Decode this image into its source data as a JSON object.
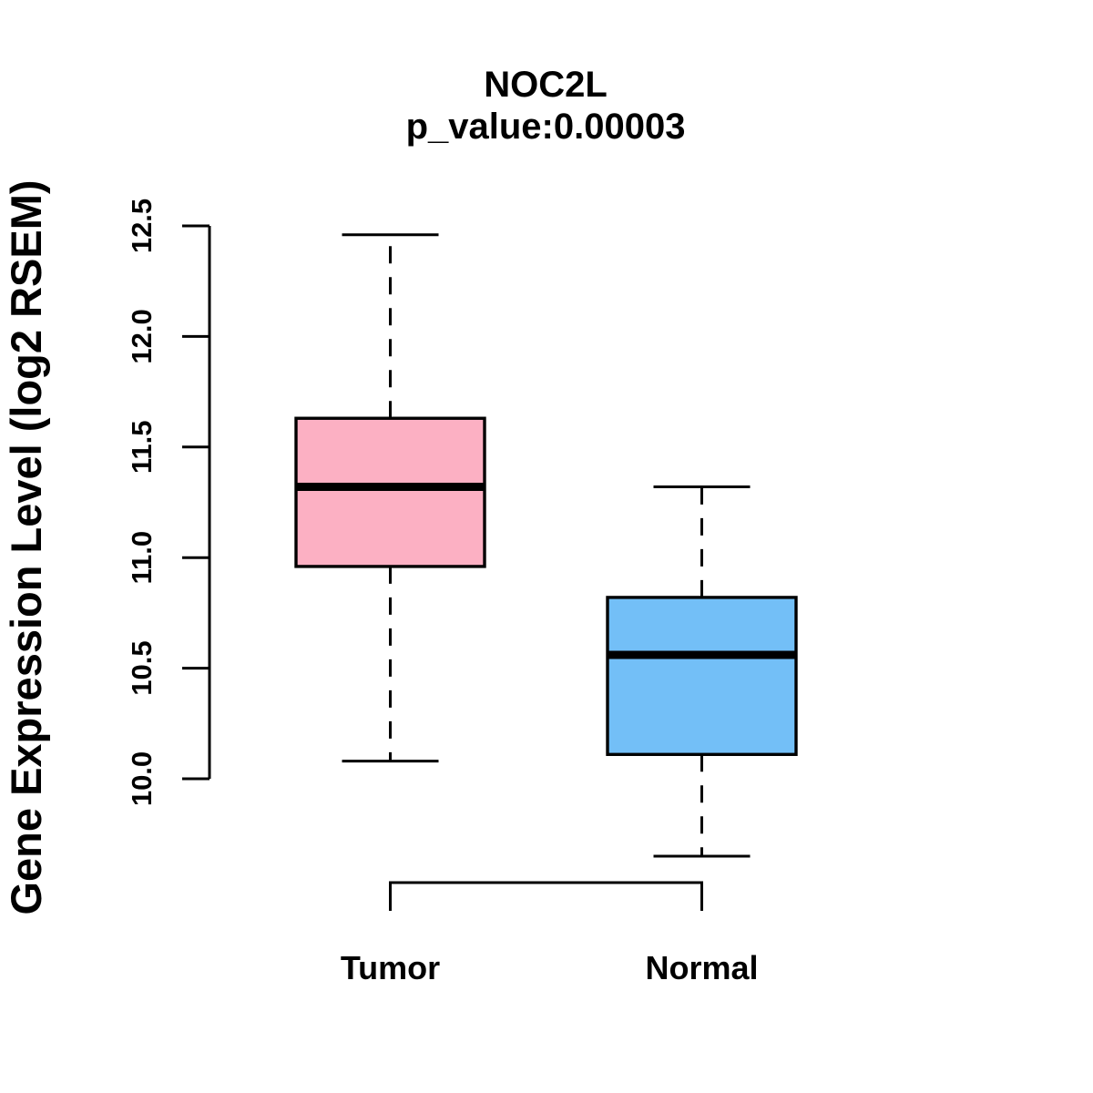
{
  "chart_data": {
    "type": "boxplot",
    "title": "NOC2L",
    "subtitle": "p_value:0.00003",
    "p_value": "0.00003",
    "ylabel": "Gene Expression Level (log2 RSEM)",
    "xlabel": "",
    "categories": [
      "Tumor",
      "Normal"
    ],
    "series": [
      {
        "name": "Tumor",
        "fill": "#FCB0C3",
        "lower_whisker": 10.08,
        "q1": 10.96,
        "median": 11.32,
        "q3": 11.63,
        "upper_whisker": 12.46
      },
      {
        "name": "Normal",
        "fill": "#73BFF7",
        "lower_whisker": 9.65,
        "q1": 10.11,
        "median": 10.56,
        "q3": 10.82,
        "upper_whisker": 11.32
      }
    ],
    "yticks": [
      10.0,
      10.5,
      11.0,
      11.5,
      12.0,
      12.5
    ],
    "ytick_labels": [
      "10.0",
      "10.5",
      "11.0",
      "11.5",
      "12.0",
      "12.5"
    ],
    "y_axis_range": [
      10.0,
      12.5
    ],
    "grid": false,
    "legend": "none",
    "whisker_style": "dashed",
    "stroke_color": "#000000",
    "background_color": "#FFFFFF"
  }
}
